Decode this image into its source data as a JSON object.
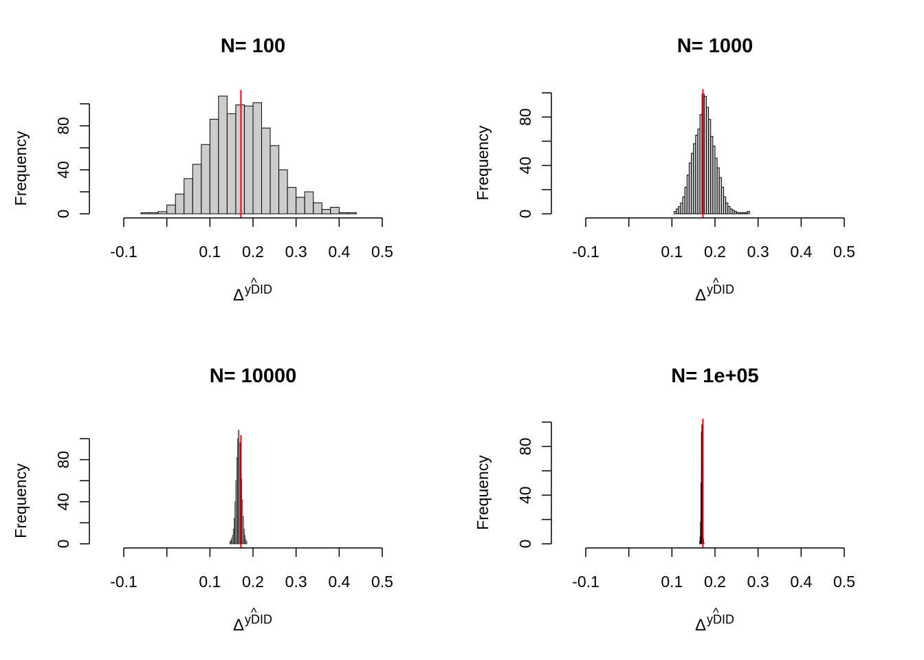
{
  "page": {
    "background": "#ffffff"
  },
  "style": {
    "bar_fill": "#cccccc",
    "bar_stroke": "#000000",
    "truth_line_color": "#ff0000",
    "axis_color": "#000000"
  },
  "chart_data": [
    {
      "type": "bar",
      "title": "N= 100",
      "ylabel": "Frequency",
      "xlabel": {
        "symbol": "Δ",
        "superscript": "yDID",
        "hat": "^"
      },
      "xlim": [
        -0.1,
        0.5
      ],
      "ylim": [
        0,
        105
      ],
      "x_ticks": [
        -0.1,
        0.0,
        0.1,
        0.2,
        0.3,
        0.4,
        0.5
      ],
      "x_tick_labels": [
        "-0.1",
        "",
        "0.1",
        "0.2",
        "0.3",
        "0.4",
        "0.5"
      ],
      "y_ticks": [
        0,
        20,
        40,
        60,
        80,
        100
      ],
      "y_tick_labels": [
        "0",
        "",
        "40",
        "",
        "80",
        ""
      ],
      "true_value": 0.172,
      "bin_width": 0.02,
      "bins_start": -0.06,
      "counts": [
        1,
        1,
        2,
        8,
        18,
        32,
        45,
        63,
        86,
        107,
        91,
        99,
        98,
        101,
        78,
        62,
        40,
        24,
        15,
        20,
        10,
        4,
        6,
        1,
        1
      ]
    },
    {
      "type": "bar",
      "title": "N= 1000",
      "ylabel": "Frequency",
      "xlabel": {
        "symbol": "Δ",
        "superscript": "yDID",
        "hat": "^"
      },
      "xlim": [
        -0.1,
        0.5
      ],
      "ylim": [
        0,
        100
      ],
      "x_ticks": [
        -0.1,
        0.0,
        0.1,
        0.2,
        0.3,
        0.4,
        0.5
      ],
      "x_tick_labels": [
        "-0.1",
        "",
        "0.1",
        "0.2",
        "0.3",
        "0.4",
        "0.5"
      ],
      "y_ticks": [
        0,
        20,
        40,
        60,
        80,
        100
      ],
      "y_tick_labels": [
        "0",
        "",
        "40",
        "",
        "80",
        ""
      ],
      "true_value": 0.172,
      "bin_width": 0.005,
      "bins_start": 0.105,
      "counts": [
        2,
        4,
        6,
        9,
        14,
        22,
        32,
        42,
        50,
        58,
        65,
        70,
        82,
        99,
        97,
        88,
        78,
        64,
        56,
        46,
        38,
        30,
        22,
        14,
        9,
        6,
        4,
        3,
        2,
        1,
        1,
        1,
        1,
        1,
        2
      ]
    },
    {
      "type": "bar",
      "title": "N= 10000",
      "ylabel": "Frequency",
      "xlabel": {
        "symbol": "Δ",
        "superscript": "yDID",
        "hat": "^"
      },
      "xlim": [
        -0.1,
        0.5
      ],
      "ylim": [
        0,
        105
      ],
      "x_ticks": [
        -0.1,
        0.0,
        0.1,
        0.2,
        0.3,
        0.4,
        0.5
      ],
      "x_tick_labels": [
        "-0.1",
        "",
        "0.1",
        "0.2",
        "0.3",
        "0.4",
        "0.5"
      ],
      "y_ticks": [
        0,
        20,
        40,
        60,
        80,
        100
      ],
      "y_tick_labels": [
        "0",
        "",
        "40",
        "",
        "80",
        ""
      ],
      "true_value": 0.172,
      "bin_width": 0.002,
      "bins_start": 0.146,
      "counts": [
        2,
        3,
        5,
        8,
        14,
        24,
        40,
        60,
        82,
        100,
        108,
        96,
        82,
        62,
        42,
        26,
        14,
        8,
        4,
        2
      ]
    },
    {
      "type": "bar",
      "title": "N= 1e+05",
      "ylabel": "Frequency",
      "xlabel": {
        "symbol": "Δ",
        "superscript": "yDID",
        "hat": "^"
      },
      "xlim": [
        -0.1,
        0.5
      ],
      "ylim": [
        0,
        100
      ],
      "x_ticks": [
        -0.1,
        0.0,
        0.1,
        0.2,
        0.3,
        0.4,
        0.5
      ],
      "x_tick_labels": [
        "-0.1",
        "",
        "0.1",
        "0.2",
        "0.3",
        "0.4",
        "0.5"
      ],
      "y_ticks": [
        0,
        20,
        40,
        60,
        80,
        100
      ],
      "y_tick_labels": [
        "0",
        "",
        "40",
        "",
        "80",
        ""
      ],
      "true_value": 0.172,
      "bin_width": 0.001,
      "bins_start": 0.164,
      "counts": [
        2,
        6,
        18,
        50,
        92,
        98,
        70,
        34,
        10,
        4,
        1
      ]
    }
  ]
}
